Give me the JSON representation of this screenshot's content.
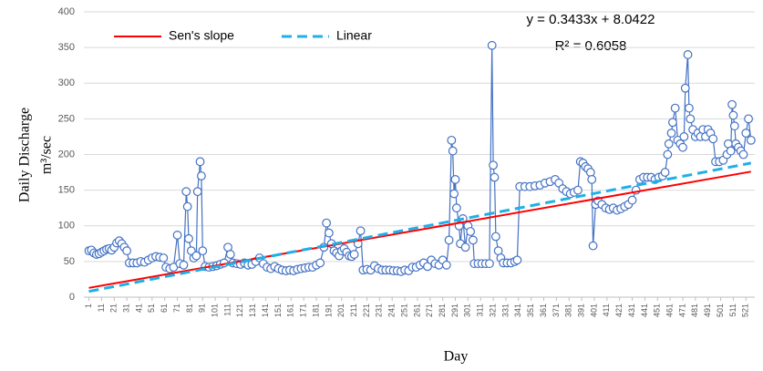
{
  "chart_data": {
    "type": "line",
    "ylabel": [
      "Daily Discharge",
      "m³/sec"
    ],
    "xlabel": "Day",
    "annotations": [
      "y = 0.3433x + 8.0422",
      "R² = 0.6058"
    ],
    "legend": "top-left",
    "grid": true,
    "ylim": [
      0,
      400
    ],
    "yticks": [
      0,
      50,
      100,
      150,
      200,
      250,
      300,
      350,
      400
    ],
    "xlim": [
      -3,
      528
    ],
    "xticks": [
      1,
      11,
      21,
      31,
      41,
      51,
      61,
      71,
      81,
      91,
      101,
      111,
      121,
      131,
      141,
      151,
      161,
      171,
      181,
      191,
      201,
      211,
      221,
      231,
      241,
      251,
      261,
      271,
      281,
      291,
      301,
      311,
      321,
      331,
      341,
      351,
      361,
      371,
      381,
      391,
      401,
      411,
      421,
      431,
      441,
      451,
      461,
      471,
      481,
      491,
      501,
      511,
      521
    ],
    "series": [
      {
        "color": "#4472c4",
        "style": "markers",
        "x": [
          1,
          3,
          5,
          7,
          9,
          11,
          13,
          15,
          17,
          19,
          21,
          23,
          25,
          27,
          29,
          31,
          33,
          36,
          39,
          42,
          45,
          48,
          51,
          54,
          57,
          60,
          62,
          65,
          68,
          71,
          73,
          76,
          78,
          79,
          80,
          82,
          84,
          86,
          87,
          89,
          90,
          91,
          93,
          96,
          99,
          102,
          105,
          108,
          111,
          113,
          115,
          118,
          121,
          124,
          127,
          130,
          133,
          136,
          139,
          142,
          145,
          148,
          151,
          154,
          157,
          160,
          163,
          166,
          169,
          172,
          175,
          178,
          181,
          184,
          187,
          189,
          191,
          193,
          195,
          197,
          199,
          201,
          203,
          205,
          207,
          209,
          211,
          214,
          216,
          218,
          221,
          224,
          227,
          230,
          233,
          236,
          239,
          242,
          245,
          248,
          251,
          254,
          257,
          260,
          263,
          266,
          269,
          272,
          275,
          278,
          281,
          284,
          286,
          288,
          289,
          290,
          291,
          292,
          294,
          295,
          297,
          299,
          301,
          303,
          305,
          306,
          309,
          312,
          315,
          318,
          320,
          321,
          322,
          323,
          325,
          327,
          329,
          332,
          335,
          338,
          340,
          342,
          346,
          350,
          354,
          358,
          362,
          366,
          370,
          373,
          376,
          379,
          382,
          385,
          388,
          390,
          392,
          394,
          396,
          398,
          399,
          400,
          402,
          404,
          407,
          410,
          413,
          416,
          419,
          422,
          425,
          428,
          431,
          434,
          437,
          440,
          443,
          446,
          449,
          452,
          455,
          457,
          459,
          460,
          462,
          463,
          465,
          467,
          469,
          471,
          472,
          473,
          475,
          476,
          477,
          479,
          481,
          483,
          485,
          487,
          489,
          491,
          493,
          495,
          497,
          500,
          503,
          506,
          507,
          509,
          510,
          511,
          512,
          513,
          515,
          517,
          519,
          521,
          523,
          525
        ],
        "values": [
          65,
          66,
          62,
          60,
          61,
          63,
          65,
          67,
          68,
          66,
          70,
          76,
          79,
          75,
          70,
          65,
          48,
          48,
          48,
          50,
          49,
          52,
          55,
          57,
          56,
          55,
          42,
          40,
          42,
          87,
          47,
          45,
          148,
          127,
          82,
          65,
          55,
          58,
          148,
          190,
          170,
          65,
          43,
          42,
          43,
          44,
          46,
          48,
          70,
          60,
          48,
          47,
          46,
          48,
          45,
          46,
          50,
          55,
          47,
          42,
          40,
          43,
          40,
          38,
          37,
          38,
          37,
          39,
          40,
          41,
          42,
          42,
          45,
          48,
          70,
          104,
          90,
          75,
          65,
          62,
          58,
          65,
          68,
          63,
          58,
          57,
          60,
          75,
          93,
          38,
          39,
          38,
          44,
          40,
          38,
          38,
          38,
          37,
          37,
          36,
          38,
          37,
          42,
          42,
          45,
          48,
          43,
          52,
          47,
          45,
          52,
          45,
          80,
          220,
          205,
          145,
          165,
          125,
          100,
          75,
          110,
          70,
          100,
          92,
          80,
          47,
          47,
          47,
          47,
          47,
          353,
          185,
          168,
          85,
          65,
          55,
          48,
          48,
          48,
          50,
          52,
          155,
          155,
          155,
          156,
          157,
          160,
          162,
          165,
          160,
          152,
          148,
          145,
          147,
          150,
          190,
          188,
          183,
          180,
          175,
          165,
          72,
          130,
          135,
          130,
          125,
          123,
          125,
          122,
          124,
          127,
          130,
          136,
          150,
          165,
          168,
          168,
          168,
          165,
          168,
          170,
          175,
          200,
          215,
          230,
          245,
          265,
          220,
          215,
          210,
          225,
          293,
          340,
          265,
          250,
          235,
          225,
          230,
          225,
          235,
          225,
          235,
          230,
          222,
          190,
          190,
          192,
          200,
          215,
          205,
          270,
          255,
          240,
          215,
          210,
          205,
          200,
          230,
          250,
          220
        ]
      },
      {
        "name": "Sen's slope",
        "color": "#ff0000",
        "style": "solid",
        "x": [
          1,
          525
        ],
        "values": [
          13,
          176
        ]
      },
      {
        "name": "Linear",
        "color": "#1fb0e8",
        "style": "dashed",
        "x": [
          1,
          525
        ],
        "values": [
          8,
          188
        ]
      }
    ]
  }
}
